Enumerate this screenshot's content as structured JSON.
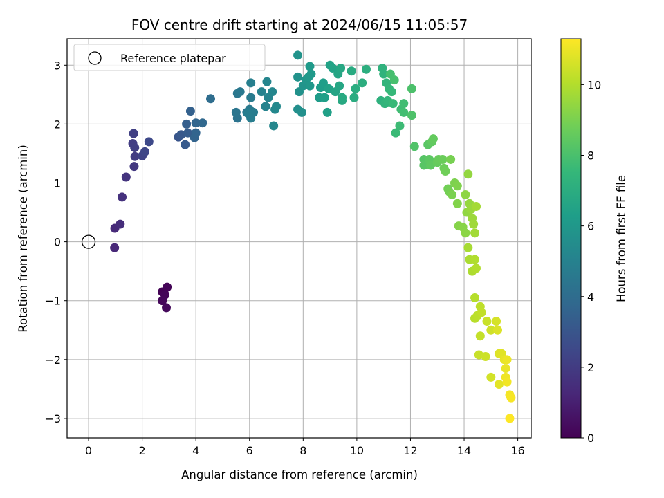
{
  "chart_data": {
    "type": "scatter",
    "title": "FOV centre drift starting at 2024/06/15 11:05:57",
    "xlabel": "Angular distance from reference (arcmin)",
    "ylabel": "Rotation from reference (arcmin)",
    "xlim": [
      -0.8,
      16.5
    ],
    "ylim": [
      -3.33,
      3.45
    ],
    "xticks": [
      0,
      2,
      4,
      6,
      8,
      10,
      12,
      14,
      16
    ],
    "yticks": [
      -3,
      -2,
      -1,
      0,
      1,
      2,
      3
    ],
    "grid": true,
    "colormap": "viridis",
    "colorbar": {
      "label": "Hours from first FF file",
      "range": [
        0,
        11.3
      ],
      "ticks": [
        0,
        2,
        4,
        6,
        8,
        10
      ]
    },
    "legend": {
      "placement": "top-left",
      "entries": [
        {
          "label": "Reference platepar",
          "marker": "open-circle",
          "color": "#000000"
        }
      ]
    },
    "reference_point": {
      "x": 0,
      "y": 0
    },
    "points": [
      [
        2.75,
        -0.85,
        0.05
      ],
      [
        2.93,
        -0.77,
        0.1
      ],
      [
        2.85,
        -0.9,
        0.15
      ],
      [
        2.75,
        -1.0,
        0.2
      ],
      [
        2.9,
        -1.12,
        0.25
      ],
      [
        0.97,
        -0.1,
        1.25
      ],
      [
        0.98,
        0.23,
        1.35
      ],
      [
        1.18,
        0.3,
        1.45
      ],
      [
        1.25,
        0.76,
        1.6
      ],
      [
        1.4,
        1.1,
        1.7
      ],
      [
        1.7,
        1.28,
        1.85
      ],
      [
        1.73,
        1.45,
        2.0
      ],
      [
        1.65,
        1.67,
        2.05
      ],
      [
        1.72,
        1.6,
        2.1
      ],
      [
        1.68,
        1.84,
        2.15
      ],
      [
        2.0,
        1.46,
        2.3
      ],
      [
        2.1,
        1.53,
        2.4
      ],
      [
        2.25,
        1.7,
        2.5
      ],
      [
        3.35,
        1.78,
        3.0
      ],
      [
        3.45,
        1.82,
        3.1
      ],
      [
        3.6,
        1.65,
        3.2
      ],
      [
        3.7,
        1.85,
        3.3
      ],
      [
        3.65,
        2.0,
        3.4
      ],
      [
        3.8,
        2.22,
        3.5
      ],
      [
        3.95,
        1.77,
        3.6
      ],
      [
        4.0,
        1.85,
        3.65
      ],
      [
        4.0,
        2.02,
        3.7
      ],
      [
        4.25,
        2.02,
        3.8
      ],
      [
        4.55,
        2.43,
        4.0
      ],
      [
        5.55,
        2.1,
        4.3
      ],
      [
        5.5,
        2.2,
        4.4
      ],
      [
        5.55,
        2.52,
        4.5
      ],
      [
        5.65,
        2.55,
        4.55
      ],
      [
        5.9,
        2.2,
        4.6
      ],
      [
        6.0,
        2.25,
        4.65
      ],
      [
        6.05,
        2.45,
        4.7
      ],
      [
        6.15,
        2.2,
        4.75
      ],
      [
        6.05,
        2.1,
        4.8
      ],
      [
        5.95,
        2.18,
        4.85
      ],
      [
        6.05,
        2.7,
        4.9
      ],
      [
        6.45,
        2.55,
        5.0
      ],
      [
        6.6,
        2.3,
        5.05
      ],
      [
        6.7,
        2.45,
        5.1
      ],
      [
        6.65,
        2.72,
        5.15
      ],
      [
        6.85,
        2.55,
        5.2
      ],
      [
        6.9,
        1.97,
        5.25
      ],
      [
        6.95,
        2.25,
        5.3
      ],
      [
        7.0,
        2.3,
        5.35
      ],
      [
        7.8,
        2.25,
        5.6
      ],
      [
        7.95,
        2.2,
        5.65
      ],
      [
        7.85,
        2.55,
        5.7
      ],
      [
        7.8,
        2.8,
        5.75
      ],
      [
        7.8,
        3.17,
        5.8
      ],
      [
        8.0,
        2.65,
        5.85
      ],
      [
        8.1,
        2.75,
        5.9
      ],
      [
        8.25,
        2.65,
        5.95
      ],
      [
        8.2,
        2.8,
        6.0
      ],
      [
        8.3,
        2.85,
        6.05
      ],
      [
        8.25,
        2.98,
        6.1
      ],
      [
        8.6,
        2.45,
        6.2
      ],
      [
        8.65,
        2.62,
        6.25
      ],
      [
        8.75,
        2.7,
        6.3
      ],
      [
        8.8,
        2.45,
        6.35
      ],
      [
        8.9,
        2.2,
        6.4
      ],
      [
        8.95,
        2.6,
        6.45
      ],
      [
        9.0,
        3.0,
        6.5
      ],
      [
        9.1,
        2.95,
        6.55
      ],
      [
        9.2,
        2.55,
        6.6
      ],
      [
        9.3,
        2.85,
        6.65
      ],
      [
        9.35,
        2.65,
        6.7
      ],
      [
        9.4,
        2.95,
        6.75
      ],
      [
        9.45,
        2.4,
        6.8
      ],
      [
        9.45,
        2.45,
        6.85
      ],
      [
        9.8,
        2.9,
        6.9
      ],
      [
        9.9,
        2.45,
        6.95
      ],
      [
        9.95,
        2.6,
        7.0
      ],
      [
        10.2,
        2.7,
        7.05
      ],
      [
        10.35,
        2.93,
        7.1
      ],
      [
        10.9,
        2.4,
        7.2
      ],
      [
        10.95,
        2.95,
        7.25
      ],
      [
        11.0,
        2.85,
        7.3
      ],
      [
        11.05,
        2.35,
        7.35
      ],
      [
        11.1,
        2.7,
        7.4
      ],
      [
        11.15,
        2.4,
        7.45
      ],
      [
        11.2,
        2.6,
        7.5
      ],
      [
        11.3,
        2.55,
        7.55
      ],
      [
        11.35,
        2.35,
        7.6
      ],
      [
        11.45,
        1.85,
        7.65
      ],
      [
        11.6,
        1.97,
        7.7
      ],
      [
        11.65,
        2.25,
        7.75
      ],
      [
        11.75,
        2.35,
        7.8
      ],
      [
        11.75,
        2.2,
        7.85
      ],
      [
        11.25,
        2.85,
        7.9
      ],
      [
        11.4,
        2.75,
        7.95
      ],
      [
        12.05,
        2.6,
        8.05
      ],
      [
        12.05,
        2.15,
        8.1
      ],
      [
        12.15,
        1.62,
        8.15
      ],
      [
        12.5,
        1.4,
        8.25
      ],
      [
        12.5,
        1.3,
        8.3
      ],
      [
        12.65,
        1.65,
        8.35
      ],
      [
        12.7,
        1.4,
        8.4
      ],
      [
        12.75,
        1.3,
        8.45
      ],
      [
        12.8,
        1.7,
        8.5
      ],
      [
        12.85,
        1.75,
        8.55
      ],
      [
        13.0,
        1.35,
        8.6
      ],
      [
        13.05,
        1.4,
        8.65
      ],
      [
        13.2,
        1.4,
        8.7
      ],
      [
        13.25,
        1.25,
        8.75
      ],
      [
        13.3,
        1.2,
        8.8
      ],
      [
        13.4,
        0.9,
        8.85
      ],
      [
        13.45,
        0.85,
        8.9
      ],
      [
        13.5,
        1.4,
        8.95
      ],
      [
        13.55,
        0.8,
        9.0
      ],
      [
        13.65,
        1.0,
        9.05
      ],
      [
        13.75,
        0.95,
        9.1
      ],
      [
        13.75,
        0.65,
        9.15
      ],
      [
        13.8,
        0.27,
        9.2
      ],
      [
        13.95,
        0.25,
        9.25
      ],
      [
        14.05,
        0.15,
        9.3
      ],
      [
        14.05,
        0.8,
        9.35
      ],
      [
        14.1,
        0.5,
        9.4
      ],
      [
        14.15,
        1.15,
        9.45
      ],
      [
        14.2,
        0.65,
        9.5
      ],
      [
        14.25,
        0.55,
        9.55
      ],
      [
        14.3,
        0.4,
        9.6
      ],
      [
        14.35,
        0.3,
        9.65
      ],
      [
        14.4,
        0.15,
        9.7
      ],
      [
        14.45,
        0.6,
        9.75
      ],
      [
        14.15,
        -0.1,
        9.8
      ],
      [
        14.2,
        -0.3,
        9.85
      ],
      [
        14.3,
        -0.5,
        9.9
      ],
      [
        14.4,
        -0.3,
        9.95
      ],
      [
        14.45,
        -0.45,
        10.0
      ],
      [
        14.4,
        -0.95,
        10.05
      ],
      [
        14.4,
        -1.3,
        10.1
      ],
      [
        14.5,
        -1.25,
        10.15
      ],
      [
        14.6,
        -1.1,
        10.2
      ],
      [
        14.65,
        -1.2,
        10.25
      ],
      [
        14.6,
        -1.6,
        10.3
      ],
      [
        14.55,
        -1.92,
        10.35
      ],
      [
        14.85,
        -1.35,
        10.4
      ],
      [
        14.8,
        -1.95,
        10.45
      ],
      [
        15.0,
        -1.5,
        10.5
      ],
      [
        15.0,
        -2.3,
        10.55
      ],
      [
        15.2,
        -1.35,
        10.6
      ],
      [
        15.25,
        -1.5,
        10.7
      ],
      [
        15.3,
        -1.9,
        10.75
      ],
      [
        15.4,
        -1.9,
        10.8
      ],
      [
        15.3,
        -2.42,
        10.85
      ],
      [
        15.5,
        -2.0,
        10.9
      ],
      [
        15.55,
        -2.15,
        10.95
      ],
      [
        15.6,
        -2.0,
        11.0
      ],
      [
        15.55,
        -2.3,
        11.05
      ],
      [
        15.6,
        -2.38,
        11.1
      ],
      [
        15.7,
        -2.6,
        11.15
      ],
      [
        15.75,
        -2.65,
        11.2
      ],
      [
        15.7,
        -3.0,
        11.3
      ]
    ]
  }
}
